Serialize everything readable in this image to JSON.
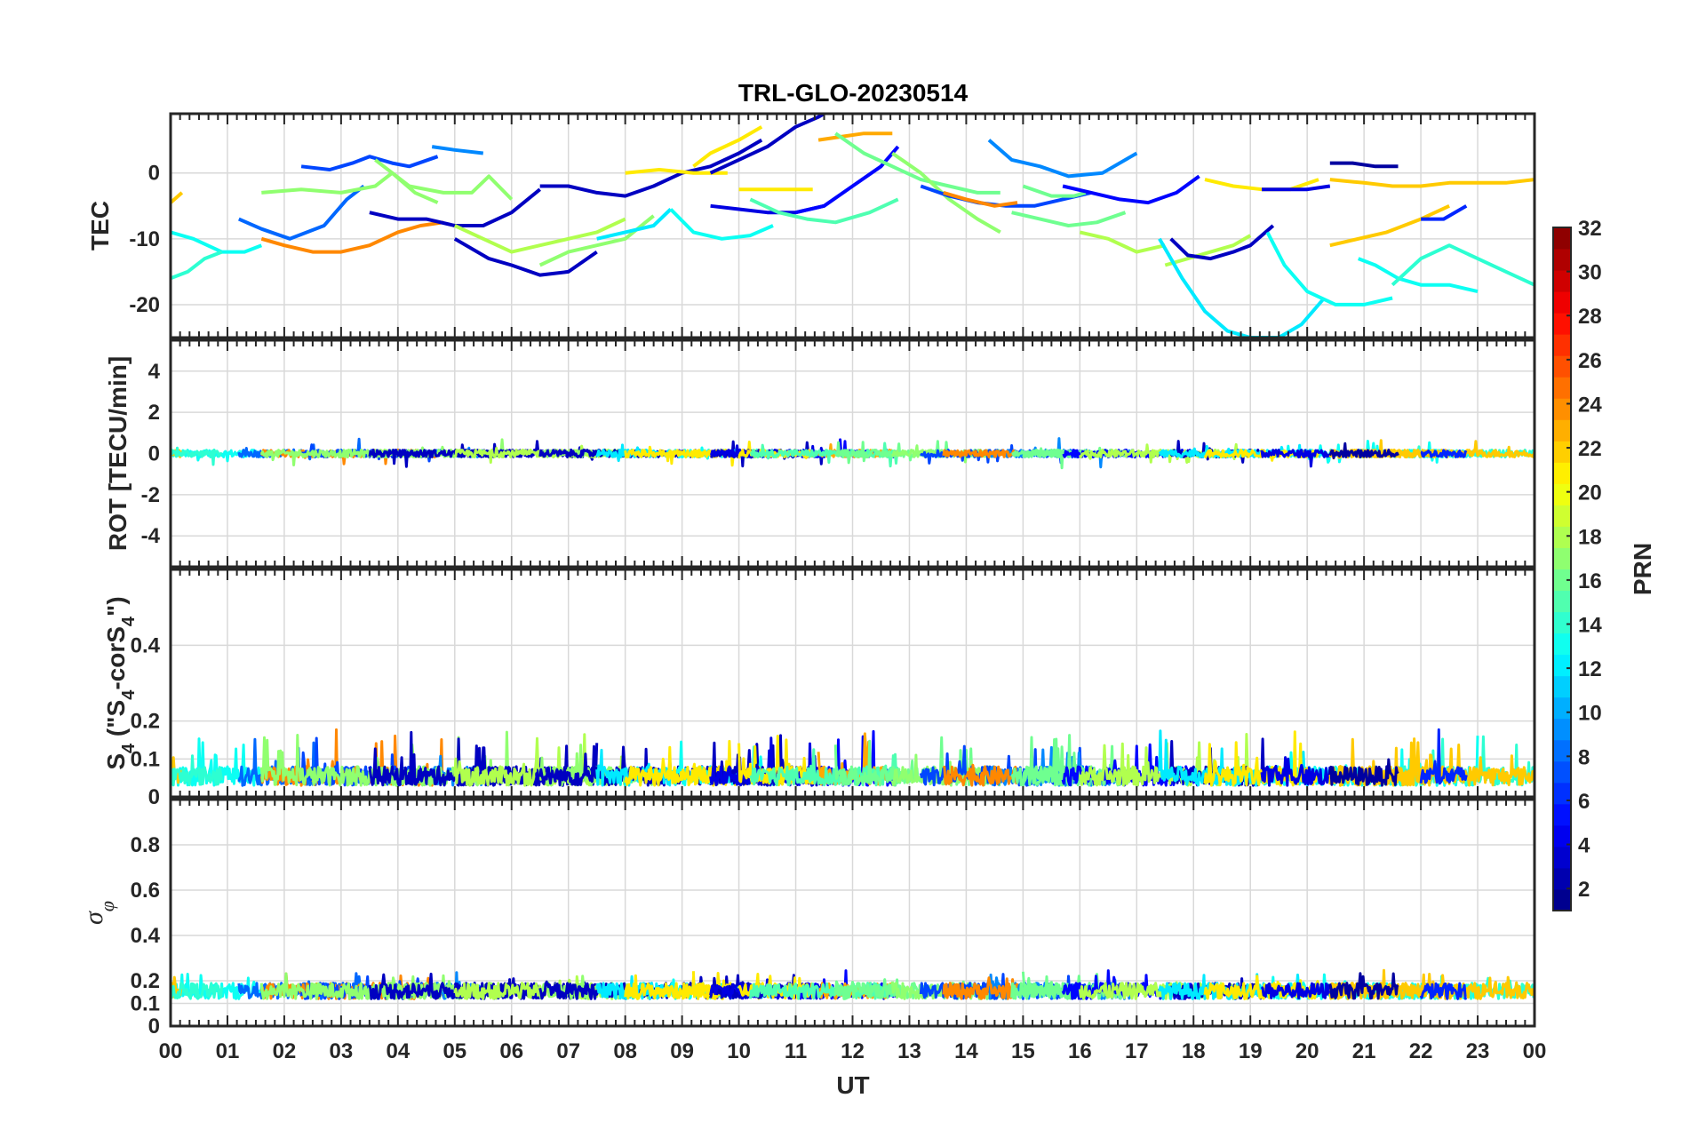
{
  "chart_data": [
    {
      "type": "line",
      "panel": "tec",
      "title": "TRL-GLO-20230514",
      "ylabel": "TEC",
      "ylim": [
        -25,
        9
      ],
      "yticks": [
        -20,
        -10,
        0
      ],
      "ytick_labels": [
        "-20",
        "-10",
        "0"
      ],
      "series": [
        {
          "prn": 13,
          "x": [
            0.0,
            0.4,
            0.9,
            1.3,
            1.6
          ],
          "y": [
            -9,
            -10,
            -12,
            -12,
            -11
          ]
        },
        {
          "prn": 22,
          "x": [
            0.0,
            0.2
          ],
          "y": [
            -4.5,
            -3
          ]
        },
        {
          "prn": 14,
          "x": [
            0.0,
            0.3,
            0.6,
            0.9
          ],
          "y": [
            -16,
            -15,
            -13,
            -12
          ]
        },
        {
          "prn": 8,
          "x": [
            1.2,
            1.6,
            2.1,
            2.7,
            3.1,
            3.4
          ],
          "y": [
            -7,
            -8.5,
            -10,
            -8,
            -4,
            -2
          ]
        },
        {
          "prn": 24,
          "x": [
            1.6,
            2.0,
            2.5,
            3.0,
            3.5,
            4.0,
            4.4,
            4.8
          ],
          "y": [
            -10,
            -11,
            -12,
            -12,
            -11,
            -9,
            -8,
            -7.5
          ]
        },
        {
          "prn": 7,
          "x": [
            2.3,
            2.8,
            3.2,
            3.5,
            3.9,
            4.2,
            4.7
          ],
          "y": [
            1,
            0.5,
            1.5,
            2.5,
            1.5,
            1,
            2.5
          ]
        },
        {
          "prn": 9,
          "x": [
            4.6,
            5.0,
            5.5
          ],
          "y": [
            4,
            3.5,
            3
          ]
        },
        {
          "prn": 17,
          "x": [
            1.6,
            2.3,
            3.0,
            3.6,
            3.9,
            4.3,
            4.7
          ],
          "y": [
            -3,
            -2.5,
            -3,
            -2,
            0,
            -3,
            -4.5
          ]
        },
        {
          "prn": 17,
          "x": [
            3.6,
            4.2,
            4.8,
            5.3,
            5.6,
            6.0
          ],
          "y": [
            2,
            -2,
            -3,
            -3,
            -0.5,
            -4
          ]
        },
        {
          "prn": 3,
          "x": [
            3.5,
            4.0,
            4.5,
            5.0,
            5.5,
            6.0,
            6.5
          ],
          "y": [
            -6,
            -7,
            -7,
            -8,
            -8,
            -6,
            -2.5
          ]
        },
        {
          "prn": 3,
          "x": [
            5.0,
            5.6,
            6.0,
            6.5,
            7.0,
            7.5
          ],
          "y": [
            -10,
            -13,
            -14,
            -15.5,
            -15,
            -12
          ]
        },
        {
          "prn": 18,
          "x": [
            5.0,
            5.5,
            6.0,
            6.5,
            7.0,
            7.5,
            8.0
          ],
          "y": [
            -8,
            -10,
            -12,
            -11,
            -10,
            -9,
            -7
          ]
        },
        {
          "prn": 17,
          "x": [
            6.5,
            7.0,
            7.5,
            8.0,
            8.5
          ],
          "y": [
            -14,
            -12,
            -11,
            -10,
            -6.5
          ]
        },
        {
          "prn": 3,
          "x": [
            6.5,
            7.0,
            7.5,
            8.0,
            8.5,
            9.0,
            9.5,
            10.0,
            10.4
          ],
          "y": [
            -2,
            -2,
            -3,
            -3.5,
            -2,
            0,
            1,
            3,
            5
          ]
        },
        {
          "prn": 12,
          "x": [
            7.5,
            8.0,
            8.5,
            8.8
          ],
          "y": [
            -10,
            -9,
            -8,
            -5.5
          ]
        },
        {
          "prn": 13,
          "x": [
            8.8,
            9.2,
            9.7,
            10.2,
            10.6
          ],
          "y": [
            -5.5,
            -9,
            -10,
            -9.5,
            -8
          ]
        },
        {
          "prn": 21,
          "x": [
            8.0,
            8.6,
            9.2,
            9.8
          ],
          "y": [
            0,
            0.5,
            0,
            0
          ]
        },
        {
          "prn": 21,
          "x": [
            9.2,
            9.5,
            10.0,
            10.4
          ],
          "y": [
            1,
            3,
            5,
            7
          ]
        },
        {
          "prn": 3,
          "x": [
            9.5,
            10.0,
            10.5,
            11.0,
            11.4,
            11.5
          ],
          "y": [
            0,
            2,
            4,
            7,
            8.5,
            9
          ]
        },
        {
          "prn": 4,
          "x": [
            9.5,
            10.0,
            10.5,
            11.0,
            11.5
          ],
          "y": [
            -5,
            -5.5,
            -6,
            -6,
            -5
          ]
        },
        {
          "prn": 5,
          "x": [
            11.0,
            11.5,
            12.0,
            12.5,
            12.8
          ],
          "y": [
            -6,
            -5,
            -2,
            1,
            4
          ]
        },
        {
          "prn": 21,
          "x": [
            10.0,
            10.5,
            11.0,
            11.3
          ],
          "y": [
            -2.5,
            -2.5,
            -2.5,
            -2.5
          ]
        },
        {
          "prn": 23,
          "x": [
            11.4,
            11.8,
            12.2,
            12.7
          ],
          "y": [
            5,
            5.5,
            6,
            6
          ]
        },
        {
          "prn": 15,
          "x": [
            10.2,
            10.7,
            11.2,
            11.7,
            12.3,
            12.8
          ],
          "y": [
            -4,
            -6,
            -7,
            -7.5,
            -6,
            -4
          ]
        },
        {
          "prn": 16,
          "x": [
            11.7,
            12.2,
            12.7,
            13.2,
            13.7,
            14.2,
            14.6
          ],
          "y": [
            6,
            3,
            1,
            -1,
            -2,
            -3,
            -3
          ]
        },
        {
          "prn": 17,
          "x": [
            12.7,
            13.2,
            13.7,
            14.2,
            14.6
          ],
          "y": [
            3,
            0,
            -4,
            -7,
            -9
          ]
        },
        {
          "prn": 7,
          "x": [
            13.2,
            13.7,
            14.2,
            14.7,
            15.2,
            15.7,
            16.2
          ],
          "y": [
            -2,
            -3.5,
            -4.5,
            -5,
            -5,
            -4,
            -3
          ]
        },
        {
          "prn": 9,
          "x": [
            14.4,
            14.8,
            15.3,
            15.8,
            16.4,
            17.0
          ],
          "y": [
            5,
            2,
            1,
            -0.5,
            0,
            3
          ]
        },
        {
          "prn": 24,
          "x": [
            13.6,
            14.0,
            14.5,
            14.9
          ],
          "y": [
            -3,
            -4,
            -5,
            -4.5
          ]
        },
        {
          "prn": 16,
          "x": [
            14.8,
            15.3,
            15.8,
            16.3,
            16.8
          ],
          "y": [
            -6,
            -7,
            -8,
            -7.5,
            -6
          ]
        },
        {
          "prn": 16,
          "x": [
            15.0,
            15.5,
            15.9,
            16.1
          ],
          "y": [
            -2,
            -3.5,
            -3.5,
            -3
          ]
        },
        {
          "prn": 5,
          "x": [
            15.7,
            16.2,
            16.7,
            17.2,
            17.7,
            18.1
          ],
          "y": [
            -2,
            -3,
            -4,
            -4.5,
            -3,
            -0.5
          ]
        },
        {
          "prn": 18,
          "x": [
            16.0,
            16.5,
            17.0,
            17.5
          ],
          "y": [
            -9,
            -10,
            -12,
            -11
          ]
        },
        {
          "prn": 18,
          "x": [
            17.5,
            17.9,
            18.3,
            18.7,
            19.0
          ],
          "y": [
            -14,
            -13,
            -12,
            -11,
            -9.5
          ]
        },
        {
          "prn": 3,
          "x": [
            17.6,
            17.9,
            18.3,
            18.7,
            19.0,
            19.4
          ],
          "y": [
            -10,
            -12.5,
            -13,
            -12,
            -11,
            -8
          ]
        },
        {
          "prn": 12,
          "x": [
            17.4,
            17.8,
            18.2,
            18.6,
            19.0,
            19.5,
            19.9,
            20.3
          ],
          "y": [
            -10,
            -16,
            -21,
            -24,
            -25,
            -25,
            -23,
            -19
          ]
        },
        {
          "prn": 13,
          "x": [
            19.3,
            19.6,
            20.0,
            20.5,
            21.0,
            21.5
          ],
          "y": [
            -9,
            -14,
            -18,
            -20,
            -20,
            -19
          ]
        },
        {
          "prn": 13,
          "x": [
            20.9,
            21.2,
            21.6,
            22.0,
            22.5,
            23.0
          ],
          "y": [
            -13,
            -14,
            -16,
            -17,
            -17,
            -18
          ]
        },
        {
          "prn": 14,
          "x": [
            21.5,
            22.0,
            22.5,
            23.0,
            23.5,
            24.0
          ],
          "y": [
            -17,
            -13,
            -11,
            -13,
            -15,
            -17
          ]
        },
        {
          "prn": 21,
          "x": [
            18.2,
            18.7,
            19.2,
            19.7,
            20.2
          ],
          "y": [
            -1,
            -2,
            -2.5,
            -2.5,
            -1
          ]
        },
        {
          "prn": 4,
          "x": [
            19.2,
            19.6,
            20.0,
            20.4
          ],
          "y": [
            -2.5,
            -2.5,
            -2.5,
            -2
          ]
        },
        {
          "prn": 22,
          "x": [
            20.4,
            21.0,
            21.5,
            22.0,
            22.5,
            23.0,
            23.5,
            24.0
          ],
          "y": [
            -1,
            -1.5,
            -2,
            -2,
            -1.5,
            -1.5,
            -1.5,
            -1
          ]
        },
        {
          "prn": 22,
          "x": [
            20.4,
            20.9,
            21.4,
            22.0,
            22.5
          ],
          "y": [
            -11,
            -10,
            -9,
            -7,
            -5
          ]
        },
        {
          "prn": 2,
          "x": [
            20.4,
            20.8,
            21.2,
            21.6
          ],
          "y": [
            1.5,
            1.5,
            1,
            1
          ]
        },
        {
          "prn": 6,
          "x": [
            22.0,
            22.4,
            22.8
          ],
          "y": [
            -7,
            -7,
            -5
          ]
        }
      ]
    },
    {
      "type": "line",
      "panel": "rot",
      "ylabel": "ROT [TECU/min]",
      "ylim": [
        -5.5,
        5.5
      ],
      "yticks": [
        -4,
        -2,
        0,
        2,
        4
      ],
      "ytick_labels": [
        "-4",
        "-2",
        "0",
        "2",
        "4"
      ],
      "baseline": 0,
      "series_note": "Per-PRN ROT traces clustered around 0 (approx. ±0.5), excursions to +1 near 05.5 UT and 21.5 UT, -1.3 near 03.9 UT"
    },
    {
      "type": "line",
      "panel": "s4",
      "ylabel_parts": [
        "S",
        "4",
        " (\"S",
        "4",
        "-corS",
        "4",
        "\")"
      ],
      "ylim": [
        0,
        0.6
      ],
      "yticks": [
        0,
        0.1,
        0.2,
        0.4
      ],
      "ytick_labels": [
        "0",
        "0.1",
        "0.2",
        "0.4"
      ],
      "series_note": "S4 values mostly 0.02-0.1 with spikes up to ~0.2"
    },
    {
      "type": "line",
      "panel": "sigma",
      "ylabel": "σ",
      "ylabel_sub": "φ",
      "ylim": [
        0,
        1.0
      ],
      "yticks": [
        0,
        0.1,
        0.2,
        0.4,
        0.6,
        0.8
      ],
      "ytick_labels": [
        "0",
        "0.1",
        "0.2",
        "0.4",
        "0.6",
        "0.8"
      ],
      "xlabel": "UT",
      "xlim": [
        0,
        24
      ],
      "xtick_labels": [
        "00",
        "01",
        "02",
        "03",
        "04",
        "05",
        "06",
        "07",
        "08",
        "09",
        "10",
        "11",
        "12",
        "13",
        "14",
        "15",
        "16",
        "17",
        "18",
        "19",
        "20",
        "21",
        "22",
        "23",
        "00"
      ],
      "series_note": "Sigma-phi values 0.1-0.25"
    }
  ],
  "colorbar": {
    "label": "PRN",
    "min": 1,
    "max": 32,
    "tick_labels": [
      "2",
      "4",
      "6",
      "8",
      "10",
      "12",
      "14",
      "16",
      "18",
      "20",
      "22",
      "24",
      "26",
      "28",
      "30",
      "32"
    ],
    "colormap": "jet",
    "levels": 32
  }
}
